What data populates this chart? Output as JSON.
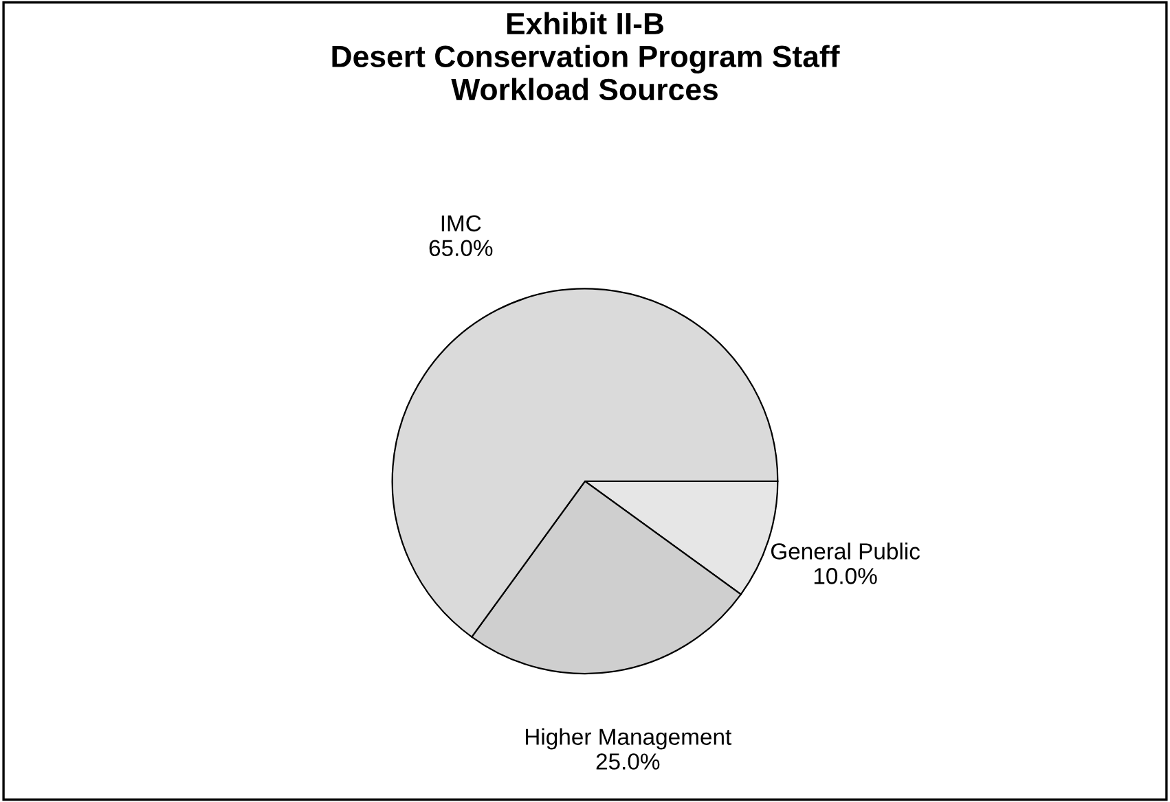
{
  "chart_data": {
    "type": "pie",
    "title": "Exhibit II-B\nDesert Conservation Program Staff\nWorkload Sources",
    "categories": [
      "General Public",
      "Higher Management",
      "IMC"
    ],
    "values": [
      10,
      25,
      65
    ],
    "value_labels": [
      "10.0%",
      "25.0%",
      "65.0%"
    ],
    "colors": [
      "#e6e6e6",
      "#cfcfcf",
      "#dadada"
    ],
    "legend": false
  }
}
